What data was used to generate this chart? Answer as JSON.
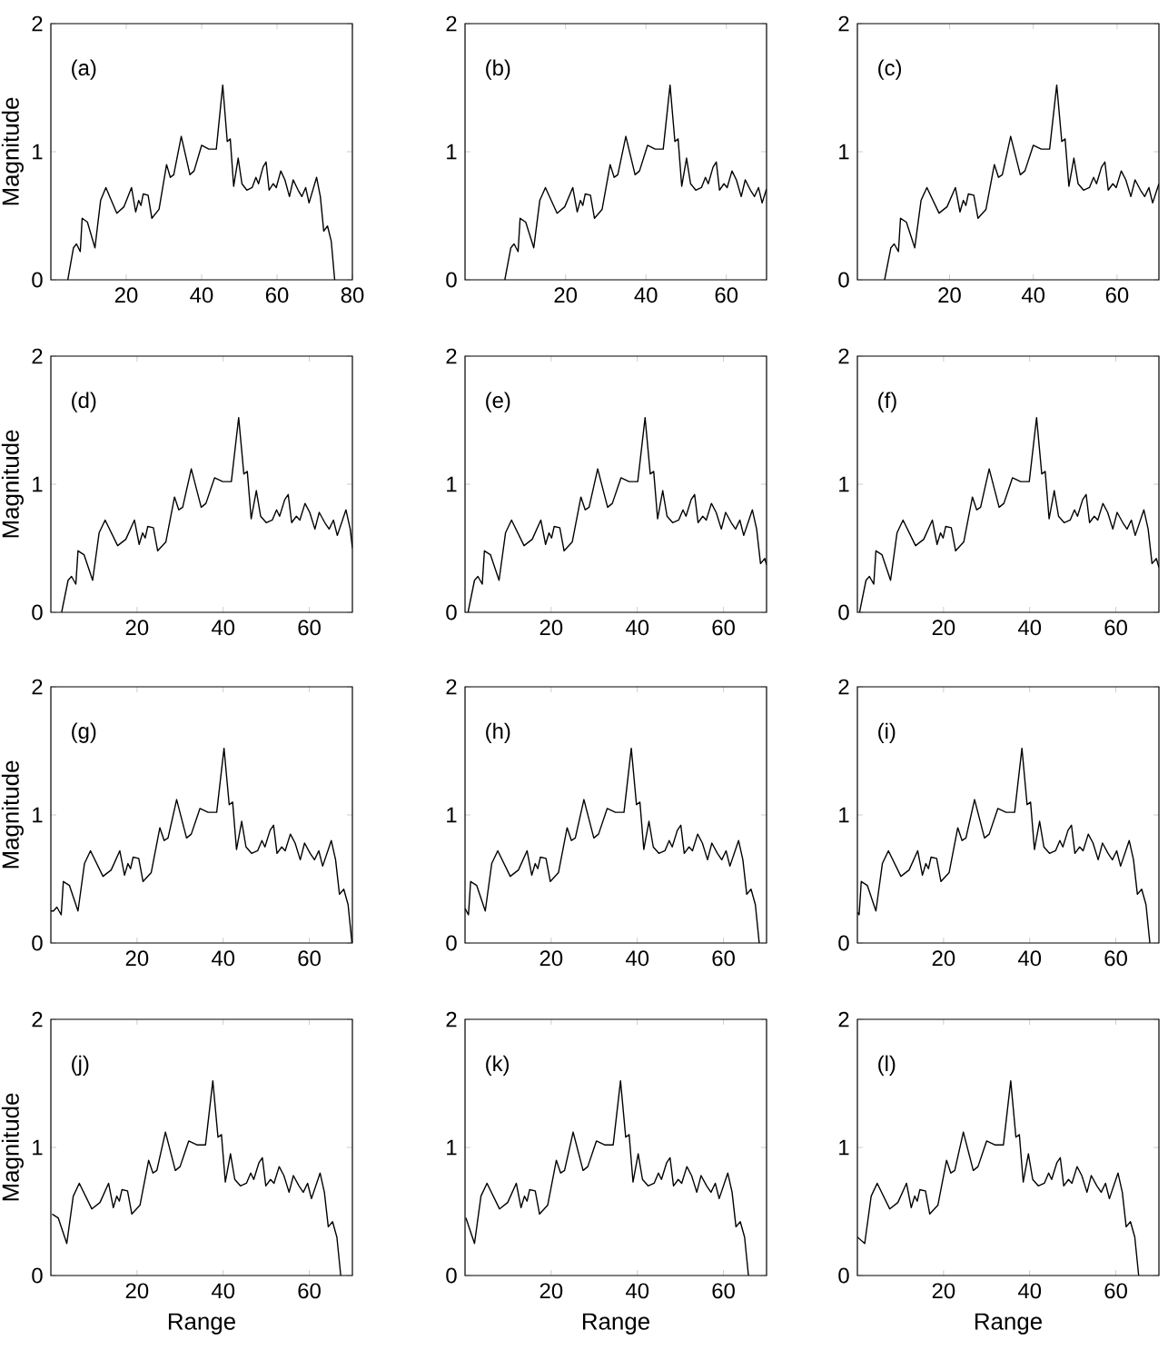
{
  "chart_data": [
    {
      "type": "line",
      "color": "#000000",
      "ylabel": "Magnitude",
      "annotations": [
        "(a)"
      ],
      "xlim": [
        0,
        80
      ],
      "ylim": [
        0,
        2
      ],
      "xticks": [
        20,
        40,
        60,
        80
      ],
      "yticks": [
        0,
        1,
        2
      ],
      "x": [
        4.5,
        6,
        6.8,
        7.8,
        8.3,
        9.7,
        11.7,
        13.2,
        14.6,
        17.5,
        19.4,
        21.4,
        22.5,
        23.3,
        23.9,
        24.5,
        25.8,
        26.8,
        28.7,
        30.7,
        31.7,
        32.6,
        34.6,
        36.9,
        38,
        40,
        41.9,
        43.9,
        45.6,
        46.8,
        47.6,
        48.5,
        49.7,
        50.7,
        52,
        53.4,
        54.4,
        55.1,
        56.3,
        57.1,
        57.9,
        59,
        59.8,
        61,
        62.1,
        63.3,
        64.3,
        65.6,
        66.6,
        67.6,
        68.5,
        70.5,
        71.5,
        72.4,
        73.4,
        74.4,
        75.3
      ],
      "values": [
        0,
        0.25,
        0.28,
        0.22,
        0.48,
        0.45,
        0.25,
        0.62,
        0.72,
        0.52,
        0.57,
        0.72,
        0.53,
        0.62,
        0.58,
        0.67,
        0.66,
        0.48,
        0.55,
        0.9,
        0.8,
        0.82,
        1.12,
        0.82,
        0.85,
        1.05,
        1.02,
        1.02,
        1.52,
        1.08,
        1.1,
        0.73,
        0.95,
        0.75,
        0.7,
        0.72,
        0.8,
        0.75,
        0.88,
        0.92,
        0.7,
        0.75,
        0.72,
        0.85,
        0.78,
        0.65,
        0.78,
        0.7,
        0.65,
        0.72,
        0.6,
        0.8,
        0.65,
        0.38,
        0.42,
        0.3,
        0
      ]
    },
    {
      "type": "line",
      "color": "#000000",
      "annotations": [
        "(b)"
      ],
      "xlim": [
        -5,
        70
      ],
      "ylim": [
        0,
        2
      ],
      "xticks": [
        20,
        40,
        60
      ],
      "yticks": [
        0,
        1,
        2
      ],
      "x": [
        4.9,
        6.4,
        7.2,
        8.2,
        8.7,
        10.1,
        12.1,
        13.6,
        15,
        17.9,
        19.8,
        21.8,
        22.9,
        23.7,
        24.3,
        24.9,
        26.2,
        27.2,
        29.1,
        31.1,
        32.1,
        33,
        35,
        37.3,
        38.4,
        40.4,
        42.3,
        44.3,
        46,
        47.2,
        48,
        48.9,
        50.1,
        51.1,
        52.4,
        53.8,
        54.8,
        55.5,
        56.7,
        57.5,
        58.3,
        59.4,
        60.2,
        61.4,
        62.5,
        63.7,
        64.7,
        66,
        67,
        68,
        68.9,
        70
      ],
      "values": [
        0,
        0.25,
        0.28,
        0.22,
        0.48,
        0.45,
        0.25,
        0.62,
        0.72,
        0.52,
        0.57,
        0.72,
        0.53,
        0.62,
        0.58,
        0.67,
        0.66,
        0.48,
        0.55,
        0.9,
        0.8,
        0.82,
        1.12,
        0.82,
        0.85,
        1.05,
        1.02,
        1.02,
        1.52,
        1.08,
        1.1,
        0.73,
        0.95,
        0.75,
        0.7,
        0.72,
        0.8,
        0.75,
        0.88,
        0.92,
        0.7,
        0.75,
        0.72,
        0.85,
        0.78,
        0.65,
        0.78,
        0.7,
        0.65,
        0.72,
        0.6,
        0.71
      ]
    },
    {
      "type": "line",
      "color": "#000000",
      "annotations": [
        "(c)"
      ],
      "xlim": [
        -2,
        70
      ],
      "ylim": [
        0,
        2
      ],
      "xticks": [
        20,
        40,
        60
      ],
      "yticks": [
        0,
        1,
        2
      ],
      "x": [
        4.5,
        6,
        6.8,
        7.8,
        8.3,
        9.7,
        11.7,
        13.2,
        14.6,
        17.5,
        19.4,
        21.4,
        22.5,
        23.3,
        23.9,
        24.5,
        25.8,
        26.8,
        28.7,
        30.7,
        31.7,
        32.6,
        34.6,
        36.9,
        38,
        40,
        41.9,
        43.9,
        45.6,
        46.8,
        47.6,
        48.5,
        49.7,
        50.7,
        52,
        53.4,
        54.4,
        55.1,
        56.3,
        57.1,
        57.9,
        59,
        59.8,
        61,
        62.1,
        63.3,
        64.3,
        65.6,
        66.6,
        67.6,
        68.5,
        70
      ],
      "values": [
        0,
        0.25,
        0.28,
        0.22,
        0.48,
        0.45,
        0.25,
        0.62,
        0.72,
        0.52,
        0.57,
        0.72,
        0.53,
        0.62,
        0.58,
        0.67,
        0.66,
        0.48,
        0.55,
        0.9,
        0.8,
        0.82,
        1.12,
        0.82,
        0.85,
        1.05,
        1.02,
        1.02,
        1.52,
        1.08,
        1.1,
        0.73,
        0.95,
        0.75,
        0.7,
        0.72,
        0.8,
        0.75,
        0.88,
        0.92,
        0.7,
        0.75,
        0.72,
        0.85,
        0.78,
        0.65,
        0.78,
        0.7,
        0.65,
        0.72,
        0.6,
        0.75
      ]
    },
    {
      "type": "line",
      "color": "#000000",
      "ylabel": "Magnitude",
      "annotations": [
        "(d)"
      ],
      "xlim": [
        0,
        70
      ],
      "ylim": [
        0,
        2
      ],
      "xticks": [
        20,
        40,
        60
      ],
      "yticks": [
        0,
        1,
        2
      ],
      "x": [
        2.5,
        4,
        4.8,
        5.8,
        6.3,
        7.7,
        9.7,
        11.2,
        12.6,
        15.5,
        17.4,
        19.4,
        20.5,
        21.3,
        21.9,
        22.5,
        23.8,
        24.8,
        26.7,
        28.7,
        29.7,
        30.6,
        32.6,
        34.9,
        36,
        38,
        39.9,
        41.9,
        43.6,
        44.8,
        45.6,
        46.5,
        47.7,
        48.7,
        50,
        51.4,
        52.4,
        53.1,
        54.3,
        55.1,
        55.9,
        57,
        57.8,
        59,
        60.1,
        61.3,
        62.3,
        63.6,
        64.6,
        65.6,
        66.5,
        68.5,
        69.5,
        70
      ],
      "values": [
        0,
        0.25,
        0.28,
        0.22,
        0.48,
        0.45,
        0.25,
        0.62,
        0.72,
        0.52,
        0.57,
        0.72,
        0.53,
        0.62,
        0.58,
        0.67,
        0.66,
        0.48,
        0.55,
        0.9,
        0.8,
        0.82,
        1.12,
        0.82,
        0.85,
        1.05,
        1.02,
        1.02,
        1.52,
        1.08,
        1.1,
        0.73,
        0.95,
        0.75,
        0.7,
        0.72,
        0.8,
        0.75,
        0.88,
        0.92,
        0.7,
        0.75,
        0.72,
        0.85,
        0.78,
        0.65,
        0.78,
        0.7,
        0.65,
        0.72,
        0.6,
        0.8,
        0.65,
        0.5
      ]
    },
    {
      "type": "line",
      "color": "#000000",
      "annotations": [
        "(e)"
      ],
      "xlim": [
        0,
        70
      ],
      "ylim": [
        0,
        2
      ],
      "xticks": [
        20,
        40,
        60
      ],
      "yticks": [
        0,
        1,
        2
      ],
      "x": [
        0.7,
        2.2,
        3,
        4,
        4.5,
        5.9,
        7.9,
        9.4,
        10.8,
        13.7,
        15.6,
        17.6,
        18.7,
        19.5,
        20.1,
        20.7,
        22,
        23,
        24.9,
        26.9,
        27.9,
        28.8,
        30.8,
        33.1,
        34.2,
        36.2,
        38.1,
        40.1,
        41.8,
        43,
        43.8,
        44.7,
        45.9,
        46.9,
        48.2,
        49.6,
        50.6,
        51.3,
        52.5,
        53.3,
        54.1,
        55.2,
        56,
        57.2,
        58.3,
        59.5,
        60.5,
        61.8,
        62.8,
        63.8,
        64.7,
        66.7,
        67.7,
        68.6,
        69.6,
        70
      ],
      "values": [
        0,
        0.25,
        0.28,
        0.22,
        0.48,
        0.45,
        0.25,
        0.62,
        0.72,
        0.52,
        0.57,
        0.72,
        0.53,
        0.62,
        0.58,
        0.67,
        0.66,
        0.48,
        0.55,
        0.9,
        0.8,
        0.82,
        1.12,
        0.82,
        0.85,
        1.05,
        1.02,
        1.02,
        1.52,
        1.08,
        1.1,
        0.73,
        0.95,
        0.75,
        0.7,
        0.72,
        0.8,
        0.75,
        0.88,
        0.92,
        0.7,
        0.75,
        0.72,
        0.85,
        0.78,
        0.65,
        0.78,
        0.7,
        0.65,
        0.72,
        0.6,
        0.8,
        0.65,
        0.38,
        0.42,
        0.37
      ]
    },
    {
      "type": "line",
      "color": "#000000",
      "annotations": [
        "(f)"
      ],
      "xlim": [
        0,
        70
      ],
      "ylim": [
        0,
        2
      ],
      "xticks": [
        20,
        40,
        60
      ],
      "yticks": [
        0,
        1,
        2
      ],
      "x": [
        0.5,
        2,
        2.8,
        3.8,
        4.3,
        5.7,
        7.7,
        9.2,
        10.6,
        13.5,
        15.4,
        17.4,
        18.5,
        19.3,
        19.9,
        20.5,
        21.8,
        22.8,
        24.7,
        26.7,
        27.7,
        28.6,
        30.6,
        32.9,
        34,
        36,
        37.9,
        39.9,
        41.6,
        42.8,
        43.6,
        44.5,
        45.7,
        46.7,
        48,
        49.4,
        50.4,
        51.1,
        52.3,
        53.1,
        53.9,
        55,
        55.8,
        57,
        58.1,
        59.3,
        60.3,
        61.6,
        62.6,
        63.6,
        64.5,
        66.5,
        67.5,
        68.4,
        69.4,
        70
      ],
      "values": [
        0,
        0.25,
        0.28,
        0.22,
        0.48,
        0.45,
        0.25,
        0.62,
        0.72,
        0.52,
        0.57,
        0.72,
        0.53,
        0.62,
        0.58,
        0.67,
        0.66,
        0.48,
        0.55,
        0.9,
        0.8,
        0.82,
        1.12,
        0.82,
        0.85,
        1.05,
        1.02,
        1.02,
        1.52,
        1.08,
        1.1,
        0.73,
        0.95,
        0.75,
        0.7,
        0.72,
        0.8,
        0.75,
        0.88,
        0.92,
        0.7,
        0.75,
        0.72,
        0.85,
        0.78,
        0.65,
        0.78,
        0.7,
        0.65,
        0.72,
        0.6,
        0.8,
        0.65,
        0.38,
        0.42,
        0.35
      ]
    },
    {
      "type": "line",
      "color": "#000000",
      "ylabel": "Magnitude",
      "annotations": [
        "(g)"
      ],
      "xlim": [
        0,
        70
      ],
      "ylim": [
        0,
        2
      ],
      "xticks": [
        20,
        40,
        60
      ],
      "yticks": [
        0,
        1,
        2
      ],
      "x": [
        0,
        0.6,
        1.4,
        2.4,
        2.9,
        4.3,
        6.3,
        7.8,
        9.2,
        12.1,
        14,
        16,
        17.1,
        17.9,
        18.5,
        19.1,
        20.4,
        21.4,
        23.3,
        25.3,
        26.3,
        27.2,
        29.2,
        31.5,
        32.6,
        34.6,
        36.5,
        38.5,
        40.2,
        41.4,
        42.2,
        43.1,
        44.3,
        45.3,
        46.6,
        48,
        49,
        49.7,
        50.9,
        51.7,
        52.5,
        53.6,
        54.4,
        55.6,
        56.7,
        57.9,
        58.9,
        60.2,
        61.2,
        62.2,
        63.1,
        65.1,
        66.1,
        67,
        68,
        69,
        69.9
      ],
      "values": [
        0.25,
        0.25,
        0.28,
        0.22,
        0.48,
        0.45,
        0.25,
        0.62,
        0.72,
        0.52,
        0.57,
        0.72,
        0.53,
        0.62,
        0.58,
        0.67,
        0.66,
        0.48,
        0.55,
        0.9,
        0.8,
        0.82,
        1.12,
        0.82,
        0.85,
        1.05,
        1.02,
        1.02,
        1.52,
        1.08,
        1.1,
        0.73,
        0.95,
        0.75,
        0.7,
        0.72,
        0.8,
        0.75,
        0.88,
        0.92,
        0.7,
        0.75,
        0.72,
        0.85,
        0.78,
        0.65,
        0.78,
        0.7,
        0.65,
        0.72,
        0.6,
        0.8,
        0.65,
        0.38,
        0.42,
        0.3,
        0
      ]
    },
    {
      "type": "line",
      "color": "#000000",
      "annotations": [
        "(h)"
      ],
      "xlim": [
        0,
        70
      ],
      "ylim": [
        0,
        2
      ],
      "xticks": [
        20,
        40,
        60
      ],
      "yticks": [
        0,
        1,
        2
      ],
      "x": [
        0,
        0.8,
        1.3,
        2.7,
        4.7,
        6.2,
        7.6,
        10.5,
        12.4,
        14.4,
        15.5,
        16.3,
        16.9,
        17.5,
        18.8,
        19.8,
        21.7,
        23.7,
        24.7,
        25.6,
        27.6,
        29.9,
        31,
        33,
        34.9,
        36.9,
        38.6,
        39.8,
        40.6,
        41.5,
        42.7,
        43.7,
        45,
        46.4,
        47.4,
        48.1,
        49.3,
        50.1,
        50.9,
        52,
        52.8,
        54,
        55.1,
        56.3,
        57.3,
        58.6,
        59.6,
        60.6,
        61.5,
        63.5,
        64.5,
        65.4,
        66.4,
        67.4,
        68.3
      ],
      "values": [
        0.27,
        0.22,
        0.48,
        0.45,
        0.25,
        0.62,
        0.72,
        0.52,
        0.57,
        0.72,
        0.53,
        0.62,
        0.58,
        0.67,
        0.66,
        0.48,
        0.55,
        0.9,
        0.8,
        0.82,
        1.12,
        0.82,
        0.85,
        1.05,
        1.02,
        1.02,
        1.52,
        1.08,
        1.1,
        0.73,
        0.95,
        0.75,
        0.7,
        0.72,
        0.8,
        0.75,
        0.88,
        0.92,
        0.7,
        0.75,
        0.72,
        0.85,
        0.78,
        0.65,
        0.78,
        0.7,
        0.65,
        0.72,
        0.6,
        0.8,
        0.65,
        0.38,
        0.42,
        0.3,
        0
      ]
    },
    {
      "type": "line",
      "color": "#000000",
      "annotations": [
        "(i)"
      ],
      "xlim": [
        0,
        70
      ],
      "ylim": [
        0,
        2
      ],
      "xticks": [
        20,
        40,
        60
      ],
      "yticks": [
        0,
        1,
        2
      ],
      "x": [
        0,
        0.4,
        0.9,
        2.3,
        4.3,
        5.8,
        7.2,
        10.1,
        12,
        14,
        15.1,
        15.9,
        16.5,
        17.1,
        18.4,
        19.4,
        21.3,
        23.3,
        24.3,
        25.2,
        27.2,
        29.5,
        30.6,
        32.6,
        34.5,
        36.5,
        38.2,
        39.4,
        40.2,
        41.1,
        42.3,
        43.3,
        44.6,
        46,
        47,
        47.7,
        48.9,
        49.7,
        50.5,
        51.6,
        52.4,
        53.6,
        54.7,
        55.9,
        56.9,
        58.2,
        59.2,
        60.2,
        61.1,
        63.1,
        64.1,
        65,
        66,
        67,
        67.9
      ],
      "values": [
        0.24,
        0.22,
        0.48,
        0.45,
        0.25,
        0.62,
        0.72,
        0.52,
        0.57,
        0.72,
        0.53,
        0.62,
        0.58,
        0.67,
        0.66,
        0.48,
        0.55,
        0.9,
        0.8,
        0.82,
        1.12,
        0.82,
        0.85,
        1.05,
        1.02,
        1.02,
        1.52,
        1.08,
        1.1,
        0.73,
        0.95,
        0.75,
        0.7,
        0.72,
        0.8,
        0.75,
        0.88,
        0.92,
        0.7,
        0.75,
        0.72,
        0.85,
        0.78,
        0.65,
        0.78,
        0.7,
        0.65,
        0.72,
        0.6,
        0.8,
        0.65,
        0.38,
        0.42,
        0.3,
        0
      ]
    },
    {
      "type": "line",
      "color": "#000000",
      "ylabel": "Magnitude",
      "xlabel": "Range",
      "annotations": [
        "(j)"
      ],
      "xlim": [
        0,
        70
      ],
      "ylim": [
        0,
        2
      ],
      "xticks": [
        20,
        40,
        60
      ],
      "yticks": [
        0,
        1,
        2
      ],
      "x": [
        0.3,
        1.7,
        3.7,
        5.2,
        6.6,
        9.5,
        11.4,
        13.4,
        14.5,
        15.3,
        15.9,
        16.5,
        17.8,
        18.8,
        20.7,
        22.7,
        23.7,
        24.6,
        26.6,
        28.9,
        30,
        32,
        33.9,
        35.9,
        37.6,
        38.8,
        39.6,
        40.5,
        41.7,
        42.7,
        44,
        45.4,
        46.4,
        47.1,
        48.3,
        49.1,
        49.9,
        51,
        51.8,
        53,
        54.1,
        55.3,
        56.3,
        57.6,
        58.6,
        59.6,
        60.5,
        62.5,
        63.5,
        64.4,
        65.4,
        66.4,
        67.3
      ],
      "values": [
        0.48,
        0.45,
        0.25,
        0.62,
        0.72,
        0.52,
        0.57,
        0.72,
        0.53,
        0.62,
        0.58,
        0.67,
        0.66,
        0.48,
        0.55,
        0.9,
        0.8,
        0.82,
        1.12,
        0.82,
        0.85,
        1.05,
        1.02,
        1.02,
        1.52,
        1.08,
        1.1,
        0.73,
        0.95,
        0.75,
        0.7,
        0.72,
        0.8,
        0.75,
        0.88,
        0.92,
        0.7,
        0.75,
        0.72,
        0.85,
        0.78,
        0.65,
        0.78,
        0.7,
        0.65,
        0.72,
        0.6,
        0.8,
        0.65,
        0.38,
        0.42,
        0.3,
        0
      ]
    },
    {
      "type": "line",
      "color": "#000000",
      "xlabel": "Range",
      "annotations": [
        "(k)"
      ],
      "xlim": [
        0,
        70
      ],
      "ylim": [
        0,
        2
      ],
      "xticks": [
        20,
        40,
        60
      ],
      "yticks": [
        0,
        1,
        2
      ],
      "x": [
        0.2,
        2.2,
        3.7,
        5.1,
        8,
        9.9,
        11.9,
        13,
        13.8,
        14.4,
        15,
        16.3,
        17.3,
        19.2,
        21.2,
        22.2,
        23.1,
        25.1,
        27.4,
        28.5,
        30.5,
        32.4,
        34.4,
        36.1,
        37.3,
        38.1,
        39,
        40.2,
        41.2,
        42.5,
        43.9,
        44.9,
        45.6,
        46.8,
        47.6,
        48.4,
        49.5,
        50.3,
        51.5,
        52.6,
        53.8,
        54.8,
        56.1,
        57.1,
        58.1,
        59,
        61,
        62,
        62.9,
        63.9,
        64.9,
        65.8
      ],
      "values": [
        0.45,
        0.25,
        0.62,
        0.72,
        0.52,
        0.57,
        0.72,
        0.53,
        0.62,
        0.58,
        0.67,
        0.66,
        0.48,
        0.55,
        0.9,
        0.8,
        0.82,
        1.12,
        0.82,
        0.85,
        1.05,
        1.02,
        1.02,
        1.52,
        1.08,
        1.1,
        0.73,
        0.95,
        0.75,
        0.7,
        0.72,
        0.8,
        0.75,
        0.88,
        0.92,
        0.7,
        0.75,
        0.72,
        0.85,
        0.78,
        0.65,
        0.78,
        0.7,
        0.65,
        0.72,
        0.6,
        0.8,
        0.65,
        0.38,
        0.42,
        0.3,
        0
      ]
    },
    {
      "type": "line",
      "color": "#000000",
      "xlabel": "Range",
      "annotations": [
        "(l)"
      ],
      "xlim": [
        0,
        70
      ],
      "ylim": [
        0,
        2
      ],
      "xticks": [
        20,
        40,
        60
      ],
      "yticks": [
        0,
        1,
        2
      ],
      "x": [
        0,
        1.7,
        3.2,
        4.6,
        7.5,
        9.4,
        11.4,
        12.5,
        13.3,
        13.9,
        14.5,
        15.8,
        16.8,
        18.7,
        20.7,
        21.7,
        22.6,
        24.6,
        26.9,
        28,
        30,
        31.9,
        33.9,
        35.6,
        36.8,
        37.6,
        38.5,
        39.7,
        40.7,
        42,
        43.4,
        44.4,
        45.1,
        46.3,
        47.1,
        47.9,
        49,
        49.8,
        51,
        52.1,
        53.3,
        54.3,
        55.6,
        56.6,
        57.6,
        58.5,
        60.5,
        61.5,
        62.4,
        63.4,
        64.4,
        65.3
      ],
      "values": [
        0.3,
        0.25,
        0.62,
        0.72,
        0.52,
        0.57,
        0.72,
        0.53,
        0.62,
        0.58,
        0.67,
        0.66,
        0.48,
        0.55,
        0.9,
        0.8,
        0.82,
        1.12,
        0.82,
        0.85,
        1.05,
        1.02,
        1.02,
        1.52,
        1.08,
        1.1,
        0.73,
        0.95,
        0.75,
        0.7,
        0.72,
        0.8,
        0.75,
        0.88,
        0.92,
        0.7,
        0.75,
        0.72,
        0.85,
        0.78,
        0.65,
        0.78,
        0.7,
        0.65,
        0.72,
        0.6,
        0.8,
        0.65,
        0.38,
        0.42,
        0.3,
        0
      ]
    }
  ]
}
